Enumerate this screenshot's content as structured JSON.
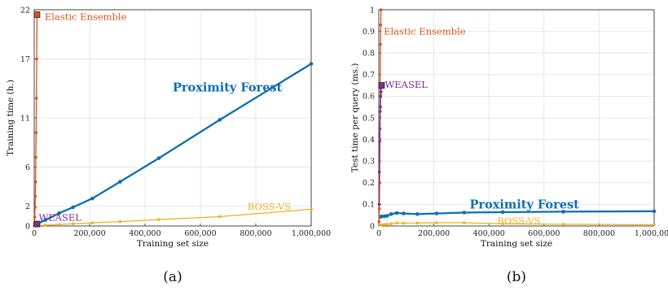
{
  "chart_data": [
    {
      "type": "line",
      "caption": "(a)",
      "xlabel": "Training set size",
      "ylabel": "Training time (h.)",
      "xlim": [
        0,
        1000000
      ],
      "ylim": [
        0,
        22
      ],
      "xticks": [
        0,
        200000,
        400000,
        600000,
        800000,
        1000000
      ],
      "xtick_labels": [
        "0",
        "200,000",
        "400,000",
        "600,000",
        "800,000",
        "1,000,000"
      ],
      "yticks": [
        0,
        2,
        6,
        11,
        17,
        22
      ],
      "ytick_labels": [
        "0",
        "2",
        "6",
        "11",
        "17",
        "22"
      ],
      "grid": true,
      "series": [
        {
          "name": "Proximity Forest",
          "color": "#0d6fb2",
          "label_style": "big",
          "label_at": [
            500000,
            14.0
          ],
          "x": [
            10000,
            40000,
            90000,
            140000,
            210000,
            310000,
            450000,
            670000,
            1000000
          ],
          "y": [
            0.2,
            0.6,
            1.3,
            1.9,
            2.8,
            4.5,
            6.9,
            10.8,
            16.5
          ],
          "marker": "dot",
          "end_marker": null
        },
        {
          "name": "BOSS-VS",
          "color": "#edb120",
          "label_style": "small",
          "label_at": [
            770000,
            2.0
          ],
          "x": [
            10000,
            40000,
            90000,
            140000,
            210000,
            310000,
            450000,
            670000,
            1000000
          ],
          "y": [
            0.03,
            0.08,
            0.15,
            0.22,
            0.32,
            0.45,
            0.65,
            0.95,
            1.7
          ],
          "marker": "dot",
          "end_marker": null
        },
        {
          "name": "Elastic Ensemble",
          "color": "#d95319",
          "label_style": "small",
          "label_at": [
            38000,
            21.3
          ],
          "x": [
            1000,
            2000,
            3000,
            4000,
            5000,
            6000,
            7000,
            8000,
            9000,
            10000
          ],
          "y": [
            0.3,
            0.9,
            1.9,
            3.0,
            4.5,
            7.0,
            9.5,
            13.0,
            17.0,
            21.5
          ],
          "marker": "dot",
          "end_marker": "square"
        },
        {
          "name": "WEASEL",
          "color": "#7e2f8e",
          "label_style": "small",
          "label_at": [
            16000,
            0.85
          ],
          "x": [
            1000,
            3000,
            5000,
            7000,
            10000
          ],
          "y": [
            0.02,
            0.05,
            0.08,
            0.12,
            0.2
          ],
          "marker": "dot",
          "end_marker": "square"
        }
      ]
    },
    {
      "type": "line",
      "caption": "(b)",
      "xlabel": "Training set size",
      "ylabel": "Test time per query (ms.)",
      "xlim": [
        0,
        1000000
      ],
      "ylim": [
        0,
        1
      ],
      "xticks": [
        0,
        200000,
        400000,
        600000,
        800000,
        1000000
      ],
      "xtick_labels": [
        "0",
        "200,000",
        "400,000",
        "600,000",
        "800,000",
        "1,000,000"
      ],
      "yticks": [
        0,
        0.1,
        0.2,
        0.3,
        0.4,
        0.5,
        0.6,
        0.7,
        0.8,
        0.9,
        1
      ],
      "ytick_labels": [
        "0",
        "0.1",
        "0.2",
        "0.3",
        "0.4",
        "0.5",
        "0.6",
        "0.7",
        "0.8",
        "0.9",
        "1"
      ],
      "grid": true,
      "series": [
        {
          "name": "Proximity Forest",
          "color": "#0d6fb2",
          "label_style": "big",
          "label_at": [
            330000,
            0.095
          ],
          "x": [
            5000,
            10000,
            20000,
            30000,
            45000,
            65000,
            90000,
            140000,
            210000,
            310000,
            450000,
            670000,
            1000000
          ],
          "y": [
            0.042,
            0.044,
            0.045,
            0.047,
            0.055,
            0.06,
            0.058,
            0.055,
            0.058,
            0.062,
            0.064,
            0.066,
            0.068
          ],
          "marker": "dot",
          "end_marker": null
        },
        {
          "name": "BOSS-VS",
          "color": "#edb120",
          "label_style": "small",
          "label_at": [
            430000,
            0.025
          ],
          "x": [
            5000,
            10000,
            20000,
            30000,
            45000,
            65000,
            90000,
            140000,
            210000,
            310000,
            450000,
            670000,
            1000000
          ],
          "y": [
            0.004,
            0.005,
            0.007,
            0.008,
            0.01,
            0.014,
            0.013,
            0.014,
            0.015,
            0.015,
            0.01,
            0.008,
            0.006
          ],
          "marker": "dot",
          "end_marker": null
        },
        {
          "name": "Elastic Ensemble",
          "color": "#d95319",
          "label_style": "small",
          "label_at": [
            18000,
            0.9
          ],
          "x": [
            1000,
            2000,
            3000,
            4000,
            5000,
            6000,
            7000,
            8000
          ],
          "y": [
            0.02,
            0.08,
            0.2,
            0.4,
            0.65,
            0.84,
            0.93,
            1.0
          ],
          "marker": "dot",
          "end_marker": null
        },
        {
          "name": "WEASEL",
          "color": "#7e2f8e",
          "label_style": "small",
          "label_at": [
            22000,
            0.655
          ],
          "x": [
            1000,
            2000,
            3000,
            4000,
            5000,
            6000,
            7000,
            8000,
            10000
          ],
          "y": [
            0.1,
            0.25,
            0.39,
            0.45,
            0.53,
            0.55,
            0.6,
            0.62,
            0.65
          ],
          "marker": "dot",
          "end_marker": "square"
        }
      ]
    }
  ]
}
